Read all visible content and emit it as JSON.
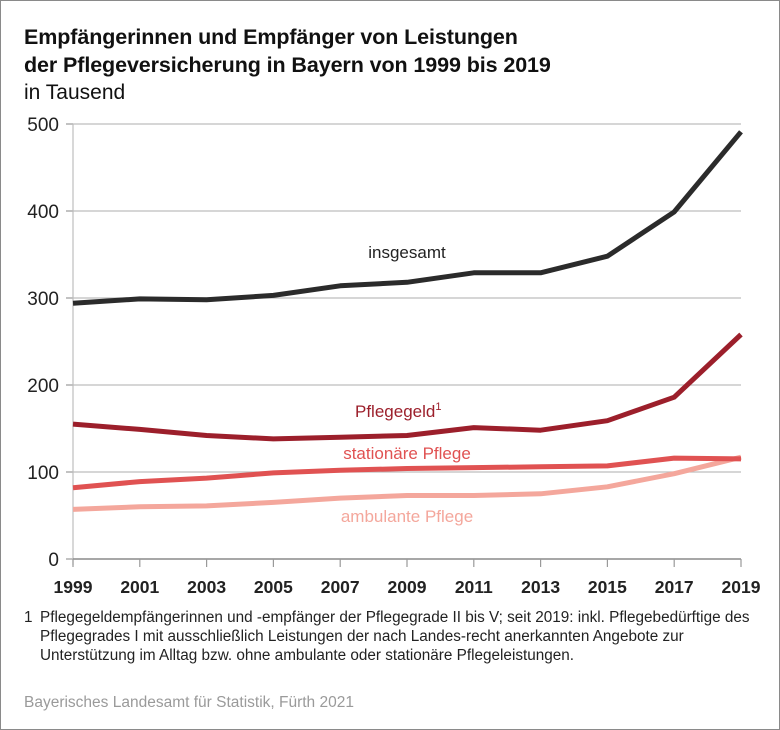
{
  "header": {
    "title_line1": "Empfängerinnen und Empfänger von Leistungen",
    "title_line2": "der Pflegeversicherung in Bayern von 1999 bis 2019",
    "subtitle": "in Tausend"
  },
  "chart_data": {
    "type": "line",
    "title": "Empfängerinnen und Empfänger von Leistungen der Pflegeversicherung in Bayern von 1999 bis 2019",
    "subtitle": "in Tausend",
    "xlabel": "",
    "ylabel": "in Tausend",
    "x": [
      "1999",
      "2001",
      "2003",
      "2005",
      "2007",
      "2009",
      "2011",
      "2013",
      "2015",
      "2017",
      "2019"
    ],
    "ylim": [
      0,
      500
    ],
    "yticks": [
      "0",
      "100",
      "200",
      "300",
      "400",
      "500"
    ],
    "grid": true,
    "legend": "inline labels",
    "series": [
      {
        "name": "insgesamt",
        "color": "#2b2b2b",
        "values": [
          294,
          299,
          298,
          303,
          314,
          318,
          329,
          329,
          348,
          399,
          491
        ]
      },
      {
        "name": "Pflegegeld",
        "superscript": "1",
        "color": "#9c1f2b",
        "values": [
          155,
          149,
          142,
          138,
          140,
          142,
          151,
          148,
          159,
          186,
          258
        ]
      },
      {
        "name": "stationäre Pflege",
        "color": "#e05252",
        "values": [
          82,
          89,
          93,
          99,
          102,
          104,
          105,
          106,
          107,
          116,
          115
        ]
      },
      {
        "name": "ambulante Pflege",
        "color": "#f4a79c",
        "values": [
          57,
          60,
          61,
          65,
          70,
          73,
          73,
          75,
          83,
          98,
          117
        ]
      }
    ]
  },
  "footnote": {
    "number": "1",
    "text": "Pflegegeldempfängerinnen und -empfänger der Pflegegrade II bis V; seit 2019: inkl. Pflegebedürftige des Pflegegrades I mit ausschließlich Leistungen der nach Landes-recht anerkannten Angebote zur Unterstützung  im Alltag bzw. ohne ambulante oder stationäre Pflegeleistungen."
  },
  "source": "Bayerisches Landesamt für Statistik, Fürth 2021"
}
